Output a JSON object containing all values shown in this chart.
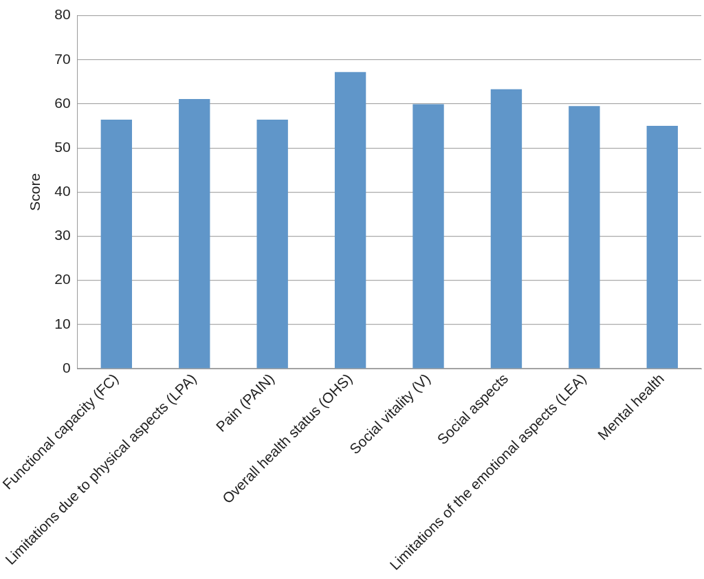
{
  "chart_data": {
    "type": "bar",
    "ylabel": "Score",
    "categories": [
      "Functional capacity (FC)",
      "Limitations due to physical aspects (LPA)",
      "Pain (PAIN)",
      "Overall health status (OHS)",
      "Social vitality (V)",
      "Social aspects",
      "Limitations of the emotional aspects (LEA)",
      "Mental health"
    ],
    "values": [
      56.4,
      61.1,
      56.4,
      67.2,
      59.9,
      63.3,
      59.5,
      55.0
    ],
    "color": "#6096c9",
    "ylim": [
      0,
      80
    ],
    "yticks": [
      0,
      10,
      20,
      30,
      40,
      50,
      60,
      70,
      80
    ],
    "grid": "y",
    "legend": false
  }
}
